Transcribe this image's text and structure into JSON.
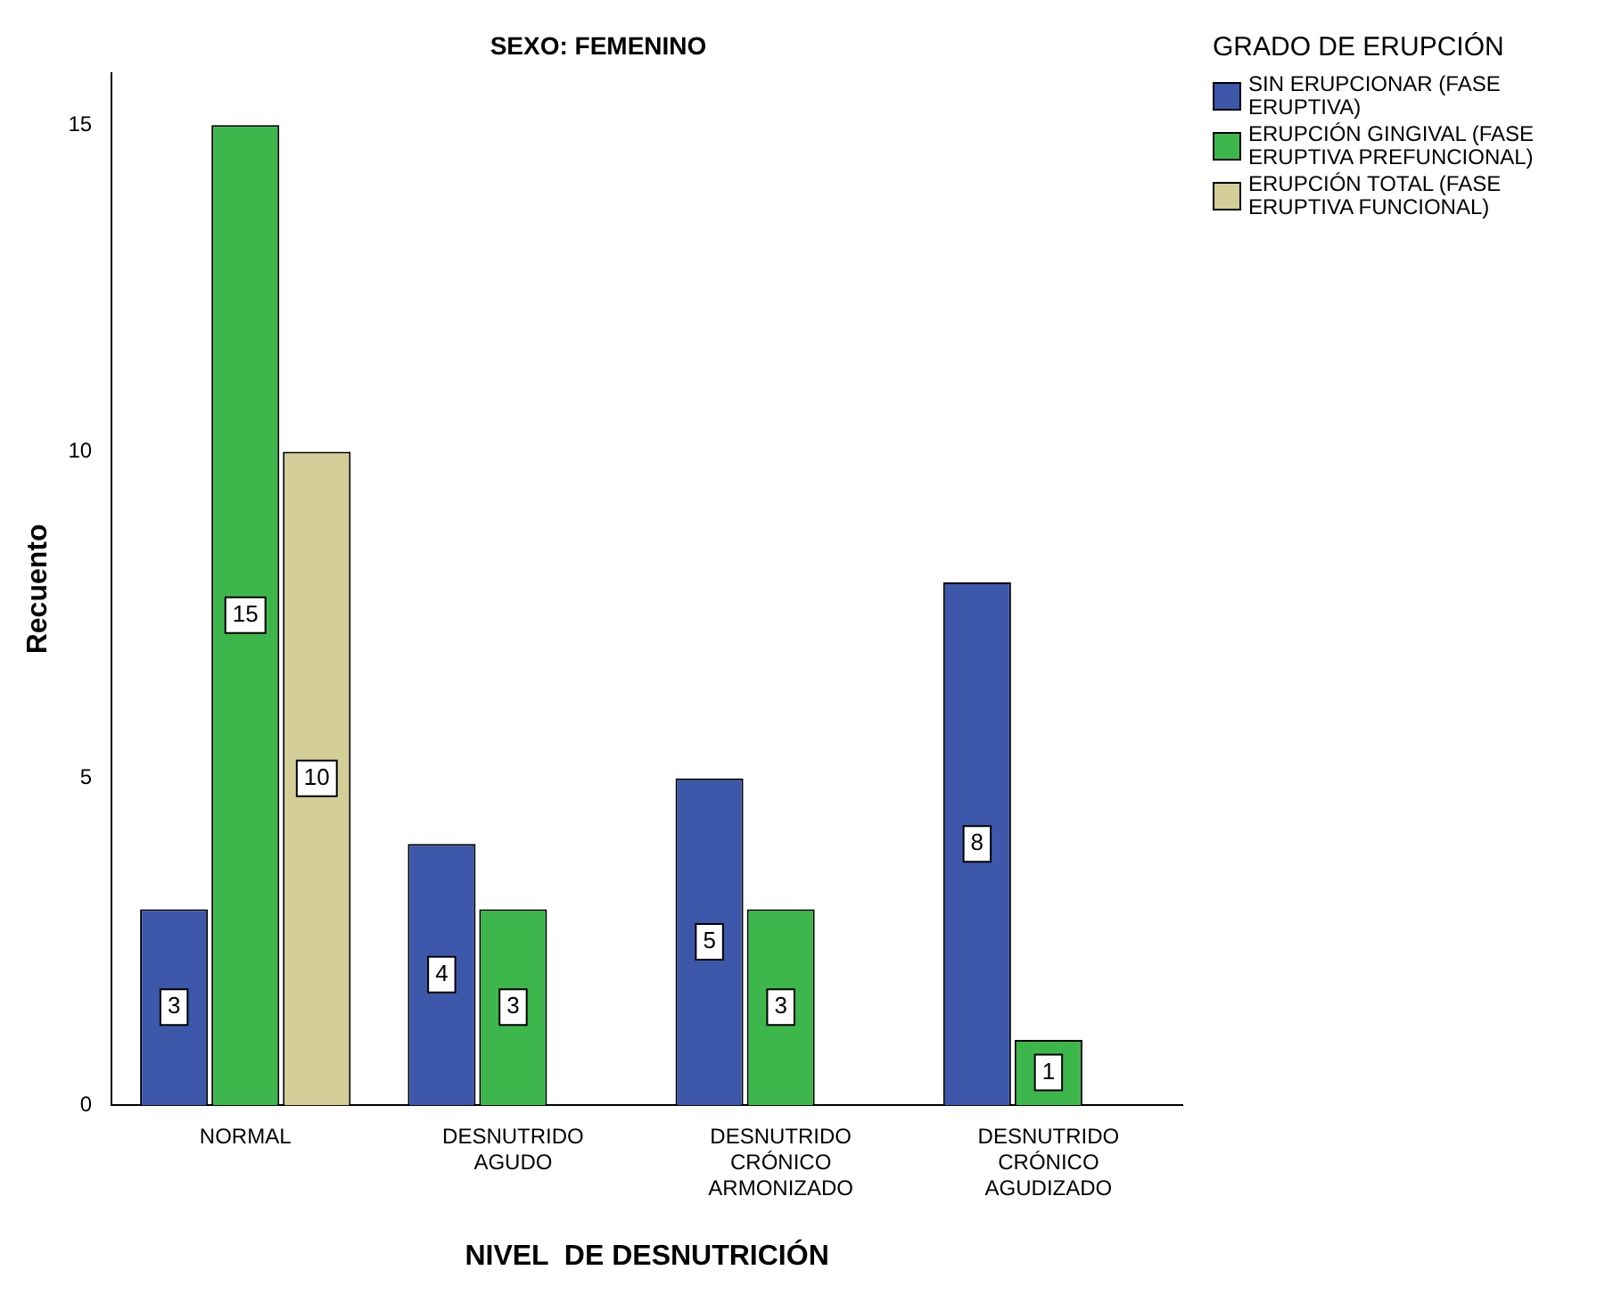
{
  "chart_data": {
    "type": "bar",
    "title": "SEXO: FEMENINO",
    "xlabel": "NIVEL  DE DESNUTRICIÓN",
    "ylabel": "Recuento",
    "legend_title": "GRADO DE ERUPCIÓN",
    "categories": [
      "NORMAL",
      "DESNUTRIDO AGUDO",
      "DESNUTRIDO CRÓNICO ARMONIZADO",
      "DESNUTRIDO CRÓNICO AGUDIZADO"
    ],
    "series": [
      {
        "name": "SIN ERUPCIONAR (FASE ERUPTIVA)",
        "color": "#3d58ab",
        "values": [
          3,
          4,
          5,
          8
        ]
      },
      {
        "name": "ERUPCIÓN GINGIVAL (FASE ERUPTIVA PREFUNCIONAL)",
        "color": "#3db64b",
        "values": [
          15,
          3,
          3,
          1
        ]
      },
      {
        "name": "ERUPCIÓN TOTAL (FASE ERUPTIVA FUNCIONAL)",
        "color": "#d3ce97",
        "values": [
          10,
          null,
          null,
          null
        ]
      }
    ],
    "ylim": [
      0,
      15.8
    ],
    "yticks": [
      0,
      5,
      10,
      15
    ],
    "grid": false,
    "legend": "top right",
    "data_labels": true
  }
}
